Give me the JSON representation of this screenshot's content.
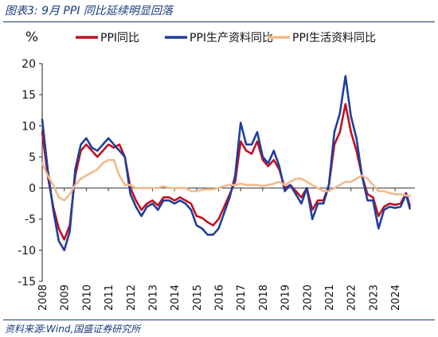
{
  "figure_title": "图表3:  9月 PPI 同比延续明显回落",
  "source_note": "资料来源:Wind,国盛证券研究所",
  "chart_data": {
    "type": "line",
    "ylabel": "%",
    "ylim": [
      -15,
      20
    ],
    "yticks": [
      20,
      15,
      10,
      5,
      0,
      -5,
      -10,
      -15
    ],
    "xlim": [
      2008,
      2024.9
    ],
    "xticks": [
      "2008",
      "2009",
      "2010",
      "2011",
      "2012",
      "2013",
      "2014",
      "2015",
      "2016",
      "2017",
      "2018",
      "2019",
      "2020",
      "2021",
      "2022",
      "2023",
      "2024"
    ],
    "grid": false,
    "legend_position": "top",
    "series": [
      {
        "name": "PPI同比",
        "color": "#c0101e",
        "width": 2.6,
        "points": [
          [
            2008.0,
            9.0
          ],
          [
            2008.25,
            2.0
          ],
          [
            2008.5,
            -3.0
          ],
          [
            2008.75,
            -6.5
          ],
          [
            2009.0,
            -8.3
          ],
          [
            2009.25,
            -6.0
          ],
          [
            2009.5,
            2.0
          ],
          [
            2009.75,
            6.0
          ],
          [
            2010.0,
            7.0
          ],
          [
            2010.25,
            6.0
          ],
          [
            2010.5,
            5.0
          ],
          [
            2010.75,
            6.0
          ],
          [
            2011.0,
            7.0
          ],
          [
            2011.25,
            6.5
          ],
          [
            2011.5,
            7.0
          ],
          [
            2011.75,
            5.0
          ],
          [
            2012.0,
            0.0
          ],
          [
            2012.25,
            -2.0
          ],
          [
            2012.5,
            -3.5
          ],
          [
            2012.75,
            -2.5
          ],
          [
            2013.0,
            -2.0
          ],
          [
            2013.25,
            -2.8
          ],
          [
            2013.5,
            -1.5
          ],
          [
            2013.75,
            -1.5
          ],
          [
            2014.0,
            -2.0
          ],
          [
            2014.25,
            -1.5
          ],
          [
            2014.5,
            -2.0
          ],
          [
            2014.75,
            -2.5
          ],
          [
            2015.0,
            -4.5
          ],
          [
            2015.25,
            -4.8
          ],
          [
            2015.5,
            -5.5
          ],
          [
            2015.75,
            -6.0
          ],
          [
            2016.0,
            -5.0
          ],
          [
            2016.25,
            -3.0
          ],
          [
            2016.5,
            -1.0
          ],
          [
            2016.75,
            1.0
          ],
          [
            2017.0,
            7.5
          ],
          [
            2017.25,
            6.0
          ],
          [
            2017.5,
            5.5
          ],
          [
            2017.75,
            7.5
          ],
          [
            2018.0,
            4.5
          ],
          [
            2018.25,
            3.5
          ],
          [
            2018.5,
            4.5
          ],
          [
            2018.75,
            3.0
          ],
          [
            2019.0,
            0.0
          ],
          [
            2019.25,
            0.5
          ],
          [
            2019.5,
            -0.5
          ],
          [
            2019.75,
            -1.5
          ],
          [
            2020.0,
            0.0
          ],
          [
            2020.25,
            -3.5
          ],
          [
            2020.5,
            -2.0
          ],
          [
            2020.75,
            -2.0
          ],
          [
            2021.0,
            0.5
          ],
          [
            2021.25,
            7.0
          ],
          [
            2021.5,
            9.0
          ],
          [
            2021.75,
            13.5
          ],
          [
            2022.0,
            9.0
          ],
          [
            2022.25,
            6.0
          ],
          [
            2022.5,
            2.0
          ],
          [
            2022.75,
            -1.0
          ],
          [
            2023.0,
            -1.5
          ],
          [
            2023.25,
            -4.5
          ],
          [
            2023.5,
            -3.0
          ],
          [
            2023.75,
            -2.5
          ],
          [
            2024.0,
            -2.7
          ],
          [
            2024.25,
            -2.5
          ],
          [
            2024.5,
            -0.8
          ],
          [
            2024.67,
            -2.8
          ]
        ]
      },
      {
        "name": "PPI生产资料同比",
        "color": "#1f3f9c",
        "width": 2.6,
        "points": [
          [
            2008.0,
            11.0
          ],
          [
            2008.25,
            3.0
          ],
          [
            2008.5,
            -3.5
          ],
          [
            2008.75,
            -8.5
          ],
          [
            2009.0,
            -10.0
          ],
          [
            2009.25,
            -7.0
          ],
          [
            2009.5,
            3.0
          ],
          [
            2009.75,
            7.0
          ],
          [
            2010.0,
            8.0
          ],
          [
            2010.25,
            6.5
          ],
          [
            2010.5,
            6.0
          ],
          [
            2010.75,
            7.0
          ],
          [
            2011.0,
            8.0
          ],
          [
            2011.25,
            7.0
          ],
          [
            2011.5,
            6.0
          ],
          [
            2011.75,
            5.0
          ],
          [
            2012.0,
            -1.0
          ],
          [
            2012.25,
            -3.0
          ],
          [
            2012.5,
            -4.5
          ],
          [
            2012.75,
            -3.0
          ],
          [
            2013.0,
            -2.5
          ],
          [
            2013.25,
            -3.5
          ],
          [
            2013.5,
            -2.0
          ],
          [
            2013.75,
            -2.0
          ],
          [
            2014.0,
            -2.5
          ],
          [
            2014.25,
            -2.0
          ],
          [
            2014.5,
            -2.5
          ],
          [
            2014.75,
            -3.5
          ],
          [
            2015.0,
            -6.0
          ],
          [
            2015.25,
            -6.5
          ],
          [
            2015.5,
            -7.5
          ],
          [
            2015.75,
            -7.5
          ],
          [
            2016.0,
            -6.5
          ],
          [
            2016.25,
            -4.0
          ],
          [
            2016.5,
            -1.5
          ],
          [
            2016.75,
            2.0
          ],
          [
            2017.0,
            10.5
          ],
          [
            2017.25,
            7.0
          ],
          [
            2017.5,
            7.0
          ],
          [
            2017.75,
            9.0
          ],
          [
            2018.0,
            5.0
          ],
          [
            2018.25,
            4.0
          ],
          [
            2018.5,
            6.0
          ],
          [
            2018.75,
            3.5
          ],
          [
            2019.0,
            -0.5
          ],
          [
            2019.25,
            0.5
          ],
          [
            2019.5,
            -1.0
          ],
          [
            2019.75,
            -2.5
          ],
          [
            2020.0,
            0.0
          ],
          [
            2020.25,
            -5.0
          ],
          [
            2020.5,
            -2.5
          ],
          [
            2020.75,
            -2.5
          ],
          [
            2021.0,
            0.5
          ],
          [
            2021.25,
            9.0
          ],
          [
            2021.5,
            12.0
          ],
          [
            2021.75,
            18.0
          ],
          [
            2022.0,
            11.5
          ],
          [
            2022.25,
            8.0
          ],
          [
            2022.5,
            2.0
          ],
          [
            2022.75,
            -2.0
          ],
          [
            2023.0,
            -2.0
          ],
          [
            2023.25,
            -6.5
          ],
          [
            2023.5,
            -3.5
          ],
          [
            2023.75,
            -3.0
          ],
          [
            2024.0,
            -3.2
          ],
          [
            2024.25,
            -3.0
          ],
          [
            2024.5,
            -1.0
          ],
          [
            2024.67,
            -3.3
          ]
        ]
      },
      {
        "name": "PPI生活资料同比",
        "color": "#f2b98a",
        "width": 2.6,
        "points": [
          [
            2008.0,
            4.0
          ],
          [
            2008.25,
            2.0
          ],
          [
            2008.5,
            0.5
          ],
          [
            2008.75,
            -1.5
          ],
          [
            2009.0,
            -2.0
          ],
          [
            2009.25,
            -1.0
          ],
          [
            2009.5,
            0.5
          ],
          [
            2009.75,
            1.5
          ],
          [
            2010.0,
            2.0
          ],
          [
            2010.25,
            2.5
          ],
          [
            2010.5,
            3.0
          ],
          [
            2010.75,
            4.0
          ],
          [
            2011.0,
            4.5
          ],
          [
            2011.25,
            4.5
          ],
          [
            2011.5,
            2.0
          ],
          [
            2011.75,
            0.5
          ],
          [
            2012.0,
            0.5
          ],
          [
            2012.25,
            0.0
          ],
          [
            2012.5,
            0.0
          ],
          [
            2012.75,
            0.0
          ],
          [
            2013.0,
            0.0
          ],
          [
            2013.25,
            0.0
          ],
          [
            2013.5,
            0.3
          ],
          [
            2013.75,
            0.0
          ],
          [
            2014.0,
            0.0
          ],
          [
            2014.25,
            0.0
          ],
          [
            2014.5,
            0.0
          ],
          [
            2014.75,
            -0.5
          ],
          [
            2015.0,
            -0.5
          ],
          [
            2015.25,
            -0.3
          ],
          [
            2015.5,
            -0.2
          ],
          [
            2015.75,
            -0.2
          ],
          [
            2016.0,
            0.0
          ],
          [
            2016.25,
            0.3
          ],
          [
            2016.5,
            0.5
          ],
          [
            2016.75,
            0.5
          ],
          [
            2017.0,
            0.7
          ],
          [
            2017.25,
            0.5
          ],
          [
            2017.5,
            0.5
          ],
          [
            2017.75,
            0.5
          ],
          [
            2018.0,
            0.3
          ],
          [
            2018.25,
            0.5
          ],
          [
            2018.5,
            0.7
          ],
          [
            2018.75,
            1.0
          ],
          [
            2019.0,
            0.5
          ],
          [
            2019.25,
            1.0
          ],
          [
            2019.5,
            1.5
          ],
          [
            2019.75,
            1.5
          ],
          [
            2020.0,
            1.0
          ],
          [
            2020.25,
            0.5
          ],
          [
            2020.5,
            0.0
          ],
          [
            2020.75,
            -0.5
          ],
          [
            2021.0,
            -0.5
          ],
          [
            2021.25,
            0.0
          ],
          [
            2021.5,
            0.5
          ],
          [
            2021.75,
            1.0
          ],
          [
            2022.0,
            1.0
          ],
          [
            2022.25,
            1.5
          ],
          [
            2022.5,
            2.0
          ],
          [
            2022.75,
            1.5
          ],
          [
            2023.0,
            0.5
          ],
          [
            2023.25,
            -0.5
          ],
          [
            2023.5,
            -0.5
          ],
          [
            2023.75,
            -0.8
          ],
          [
            2024.0,
            -1.0
          ],
          [
            2024.25,
            -1.0
          ],
          [
            2024.5,
            -1.2
          ],
          [
            2024.67,
            -1.3
          ]
        ]
      }
    ]
  }
}
